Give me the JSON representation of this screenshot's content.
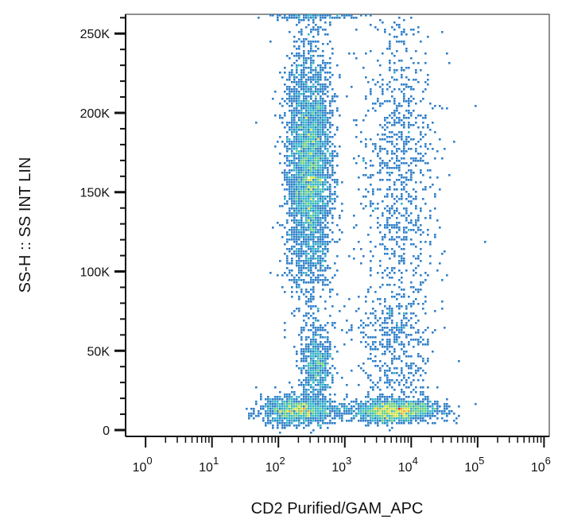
{
  "chart_data": {
    "type": "scatter",
    "subtype": "flow-cytometry-density-dot-plot",
    "title": "",
    "xlabel": "CD2 Purified/GAM_APC",
    "ylabel": "SS-H :: SS INT LIN",
    "x_scale": "log",
    "xlim": [
      0.5,
      1200000
    ],
    "ylim": [
      -4000,
      262144
    ],
    "x_ticks": [
      {
        "value": 1,
        "base": "10",
        "exp": "0"
      },
      {
        "value": 10,
        "base": "10",
        "exp": "1"
      },
      {
        "value": 100,
        "base": "10",
        "exp": "2"
      },
      {
        "value": 1000,
        "base": "10",
        "exp": "3"
      },
      {
        "value": 10000,
        "base": "10",
        "exp": "4"
      },
      {
        "value": 100000,
        "base": "10",
        "exp": "5"
      },
      {
        "value": 1000000,
        "base": "10",
        "exp": "6"
      }
    ],
    "y_ticks": [
      {
        "value": 0,
        "label": "0"
      },
      {
        "value": 50000,
        "label": "50K"
      },
      {
        "value": 100000,
        "label": "100K"
      },
      {
        "value": 150000,
        "label": "150K"
      },
      {
        "value": 200000,
        "label": "200K"
      },
      {
        "value": 250000,
        "label": "250K"
      }
    ],
    "grid": false,
    "legend": "none",
    "density_colors": [
      "#2b2f9e",
      "#2f7fc8",
      "#34b6c7",
      "#6dcf7c",
      "#d9e142",
      "#f7a02a",
      "#e3261c"
    ],
    "populations": [
      {
        "log10_x_center": 2.45,
        "log10_x_sd": 0.17,
        "y_center": 165000,
        "y_sd": 38000,
        "weight": 0.42
      },
      {
        "log10_x_center": 2.55,
        "log10_x_sd": 0.12,
        "y_center": 42000,
        "y_sd": 12000,
        "weight": 0.07
      },
      {
        "log10_x_center": 2.3,
        "log10_x_sd": 0.28,
        "y_center": 13000,
        "y_sd": 4500,
        "weight": 0.14
      },
      {
        "log10_x_center": 3.75,
        "log10_x_sd": 0.32,
        "y_center": 13000,
        "y_sd": 3500,
        "weight": 0.18
      },
      {
        "log10_x_center": 3.8,
        "log10_x_sd": 0.3,
        "y_center": 165000,
        "y_sd": 50000,
        "weight": 0.1
      },
      {
        "log10_x_center": 3.7,
        "log10_x_sd": 0.3,
        "y_center": 55000,
        "y_sd": 20000,
        "weight": 0.05
      },
      {
        "log10_x_center": 2.5,
        "log10_x_sd": 0.35,
        "y_center": 262000,
        "y_sd": 500,
        "weight": 0.04
      }
    ]
  }
}
